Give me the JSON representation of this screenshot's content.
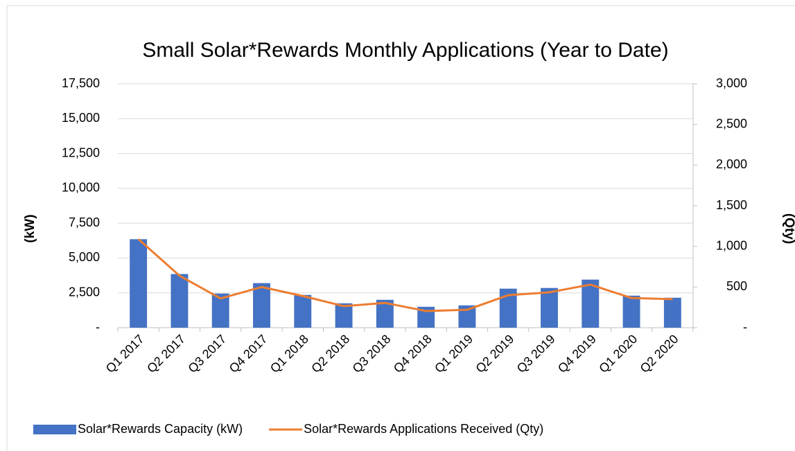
{
  "chart_data": {
    "type": "bar",
    "title": "Small Solar*Rewards Monthly Applications (Year to Date)",
    "ylabel": "(kW)",
    "y2label": "(Qty)",
    "categories": [
      "Q1 2017",
      "Q2 2017",
      "Q3 2017",
      "Q4 2017",
      "Q1 2018",
      "Q2 2018",
      "Q3 2018",
      "Q4 2018",
      "Q1 2019",
      "Q2 2019",
      "Q3 2019",
      "Q4 2019",
      "Q1 2020",
      "Q2 2020"
    ],
    "series": [
      {
        "name": "Solar*Rewards Capacity (kW)",
        "type": "bar",
        "color": "#4472c4",
        "values": [
          6350,
          3850,
          2450,
          3200,
          2350,
          1750,
          2000,
          1500,
          1600,
          2800,
          2850,
          3450,
          2300,
          2150
        ]
      },
      {
        "name": "Solar*Rewards Applications Received (Qty)",
        "type": "line",
        "axis": "y2",
        "color": "#ed7d31",
        "values": [
          1090,
          640,
          360,
          500,
          390,
          265,
          305,
          205,
          220,
          400,
          435,
          530,
          365,
          350
        ]
      }
    ],
    "ylim": [
      0,
      17500
    ],
    "yticks": [
      {
        "value": 0,
        "label": "-"
      },
      {
        "value": 2500,
        "label": "2,500"
      },
      {
        "value": 5000,
        "label": "5,000"
      },
      {
        "value": 7500,
        "label": "7,500"
      },
      {
        "value": 10000,
        "label": "10,000"
      },
      {
        "value": 12500,
        "label": "12,500"
      },
      {
        "value": 15000,
        "label": "15,000"
      },
      {
        "value": 17500,
        "label": "17,500"
      }
    ],
    "y2lim": [
      0,
      3000
    ],
    "y2ticks": [
      {
        "value": 0,
        "label": "-"
      },
      500,
      {
        "value": 1000,
        "label": "1,000"
      },
      {
        "value": 1500,
        "label": "1,500"
      },
      {
        "value": 2000,
        "label": "2,000"
      },
      {
        "value": 2500,
        "label": "2,500"
      },
      {
        "value": 3000,
        "label": "3,000"
      }
    ],
    "grid": true,
    "legend": "bottom"
  }
}
